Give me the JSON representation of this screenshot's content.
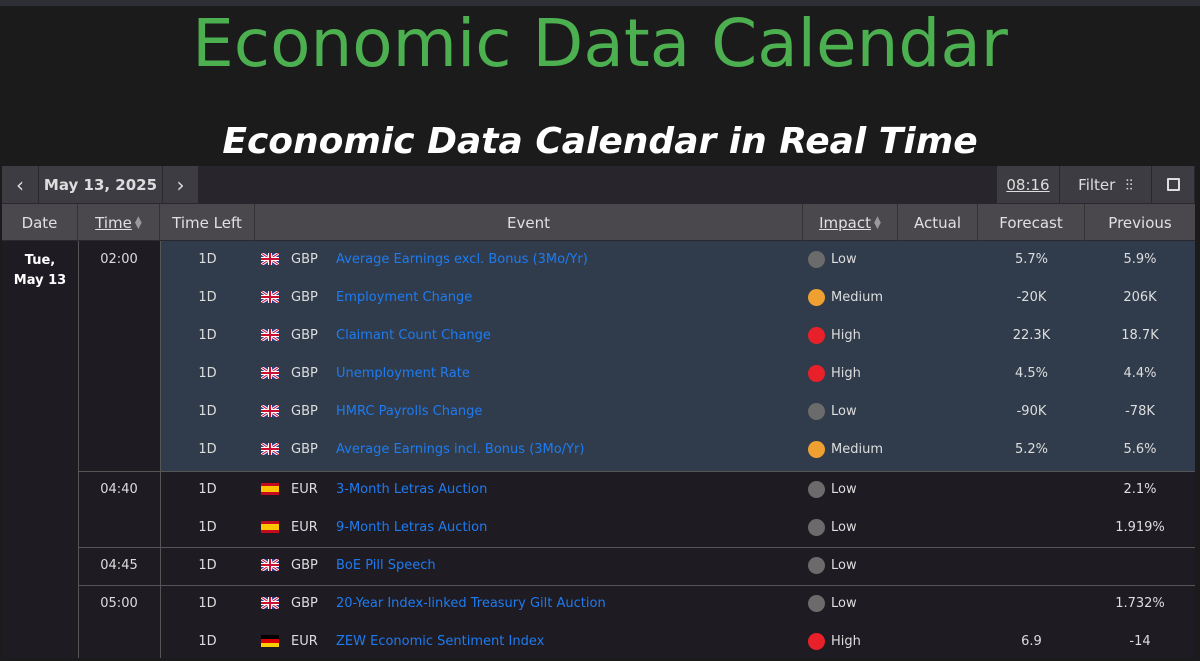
{
  "header": {
    "title": "Economic Data Calendar",
    "subtitle": "Economic Data Calendar in Real Time"
  },
  "toolbar": {
    "date": "May 13, 2025",
    "time": "08:16",
    "filter": "Filter"
  },
  "columns": {
    "date": "Date",
    "time": "Time",
    "time_left": "Time Left",
    "event": "Event",
    "impact": "Impact",
    "actual": "Actual",
    "forecast": "Forecast",
    "previous": "Previous"
  },
  "date_cell": {
    "line1": "Tue,",
    "line2": "May 13"
  },
  "colors": {
    "title": "#4caf50",
    "link": "#1e7bf0",
    "highlight": "#303c4b"
  },
  "rows": [
    {
      "time": "02:00",
      "left": "1D",
      "flag": "uk",
      "cur": "GBP",
      "event": "Average Earnings excl. Bonus (3Mo/Yr)",
      "impact": "Low",
      "actual": "",
      "forecast": "5.7%",
      "previous": "5.9%"
    },
    {
      "time": "",
      "left": "1D",
      "flag": "uk",
      "cur": "GBP",
      "event": "Employment Change",
      "impact": "Medium",
      "actual": "",
      "forecast": "-20K",
      "previous": "206K"
    },
    {
      "time": "",
      "left": "1D",
      "flag": "uk",
      "cur": "GBP",
      "event": "Claimant Count Change",
      "impact": "High",
      "actual": "",
      "forecast": "22.3K",
      "previous": "18.7K"
    },
    {
      "time": "",
      "left": "1D",
      "flag": "uk",
      "cur": "GBP",
      "event": "Unemployment Rate",
      "impact": "High",
      "actual": "",
      "forecast": "4.5%",
      "previous": "4.4%"
    },
    {
      "time": "",
      "left": "1D",
      "flag": "uk",
      "cur": "GBP",
      "event": "HMRC Payrolls Change",
      "impact": "Low",
      "actual": "",
      "forecast": "-90K",
      "previous": "-78K"
    },
    {
      "time": "",
      "left": "1D",
      "flag": "uk",
      "cur": "GBP",
      "event": "Average Earnings incl. Bonus (3Mo/Yr)",
      "impact": "Medium",
      "actual": "",
      "forecast": "5.2%",
      "previous": "5.6%"
    },
    {
      "time": "04:40",
      "left": "1D",
      "flag": "es",
      "cur": "EUR",
      "event": "3-Month Letras Auction",
      "impact": "Low",
      "actual": "",
      "forecast": "",
      "previous": "2.1%"
    },
    {
      "time": "",
      "left": "1D",
      "flag": "es",
      "cur": "EUR",
      "event": "9-Month Letras Auction",
      "impact": "Low",
      "actual": "",
      "forecast": "",
      "previous": "1.919%"
    },
    {
      "time": "04:45",
      "left": "1D",
      "flag": "uk",
      "cur": "GBP",
      "event": "BoE Pill Speech",
      "impact": "Low",
      "actual": "",
      "forecast": "",
      "previous": ""
    },
    {
      "time": "05:00",
      "left": "1D",
      "flag": "uk",
      "cur": "GBP",
      "event": "20-Year Index-linked Treasury Gilt Auction",
      "impact": "Low",
      "actual": "",
      "forecast": "",
      "previous": "1.732%"
    },
    {
      "time": "",
      "left": "1D",
      "flag": "de",
      "cur": "EUR",
      "event": "ZEW Economic Sentiment Index",
      "impact": "High",
      "actual": "",
      "forecast": "6.9",
      "previous": "-14"
    }
  ]
}
